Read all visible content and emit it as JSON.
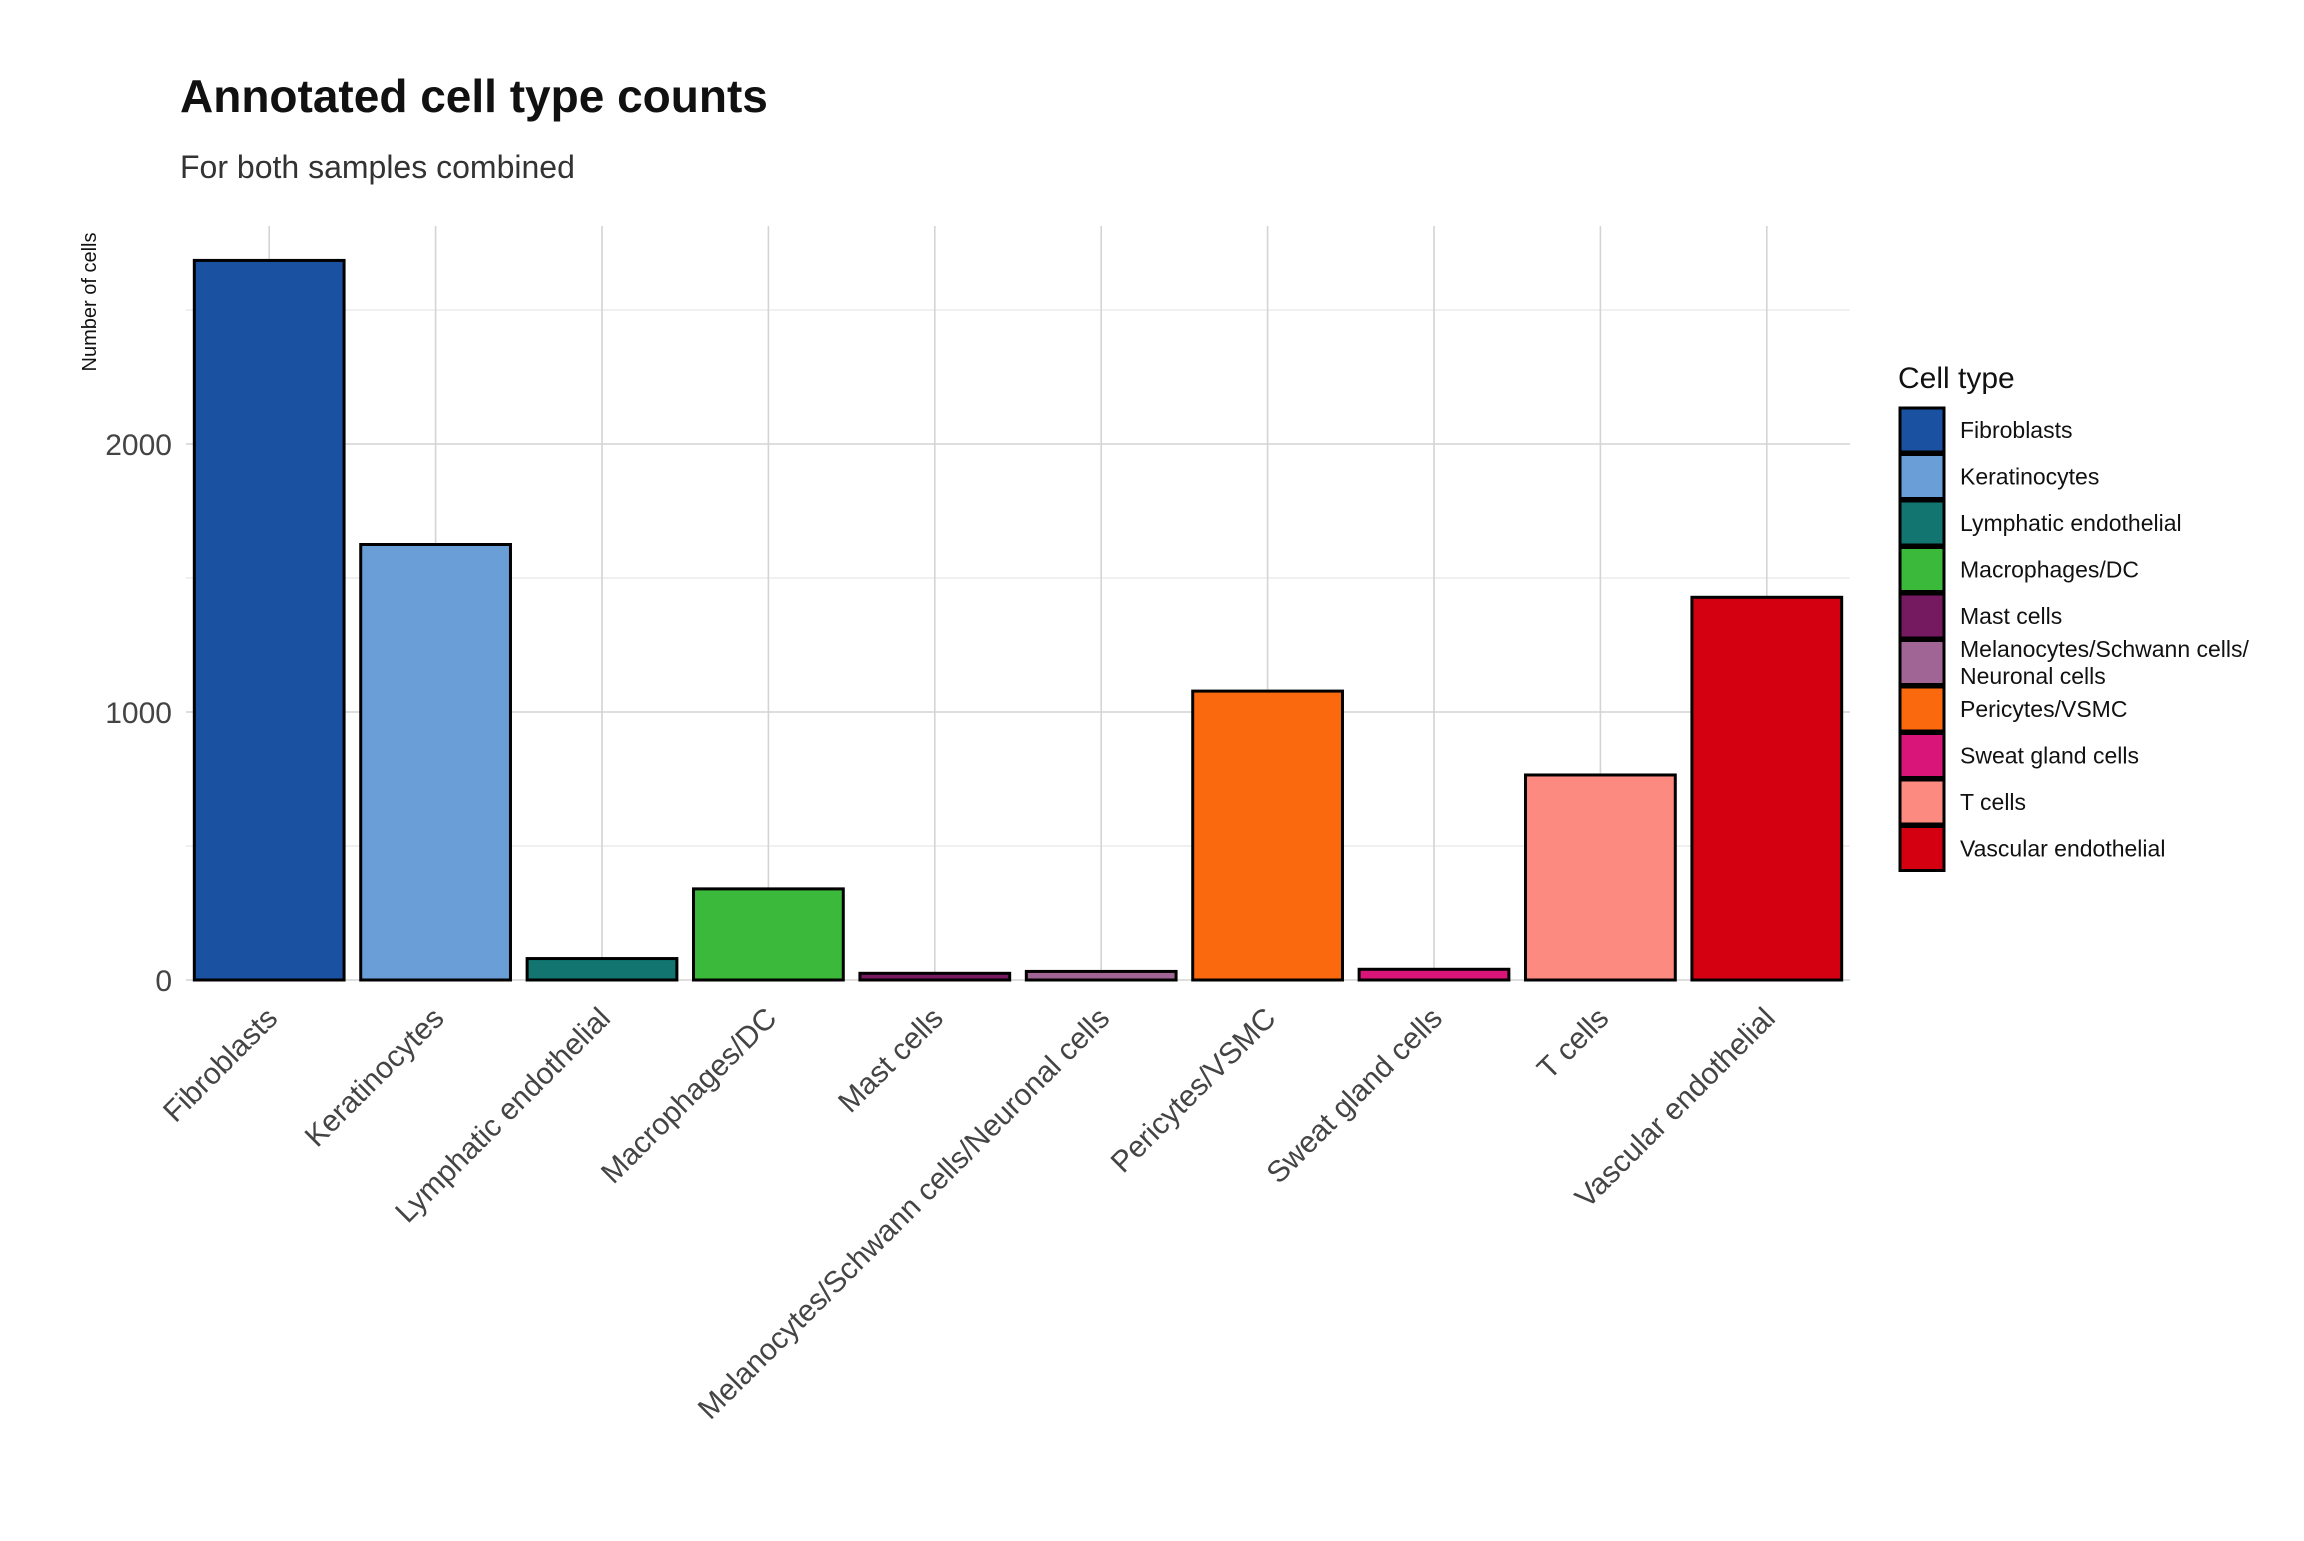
{
  "chart_data": {
    "type": "bar",
    "title": "Annotated cell type counts",
    "subtitle": "For both samples combined",
    "xlabel": "",
    "ylabel": "Number of cells",
    "ylim": [
      0,
      2820
    ],
    "yticks": [
      0,
      1000,
      2000
    ],
    "grid": true,
    "legend": {
      "title": "Cell type",
      "placement": "right",
      "entries": [
        "Fibroblasts",
        "Keratinocytes",
        "Lymphatic endothelial",
        "Macrophages/DC",
        "Mast cells",
        "Melanocytes/Schwann cells/\nNeuronal cells",
        "Pericytes/VSMC",
        "Sweat gland cells",
        "T cells",
        "Vascular endothelial"
      ]
    },
    "categories": [
      "Fibroblasts",
      "Keratinocytes",
      "Lymphatic endothelial",
      "Macrophages/DC",
      "Mast cells",
      "Melanocytes/Schwann cells/Neuronal cells",
      "Pericytes/VSMC",
      "Sweat gland cells",
      "T cells",
      "Vascular endothelial"
    ],
    "values": [
      2685,
      1625,
      80,
      340,
      25,
      32,
      1078,
      40,
      765,
      1428
    ],
    "colors": [
      "#1a51a0",
      "#6a9ed6",
      "#127570",
      "#3bb93b",
      "#751a60",
      "#a06594",
      "#fb690e",
      "#d9157a",
      "#fd8a80",
      "#d40012"
    ]
  }
}
